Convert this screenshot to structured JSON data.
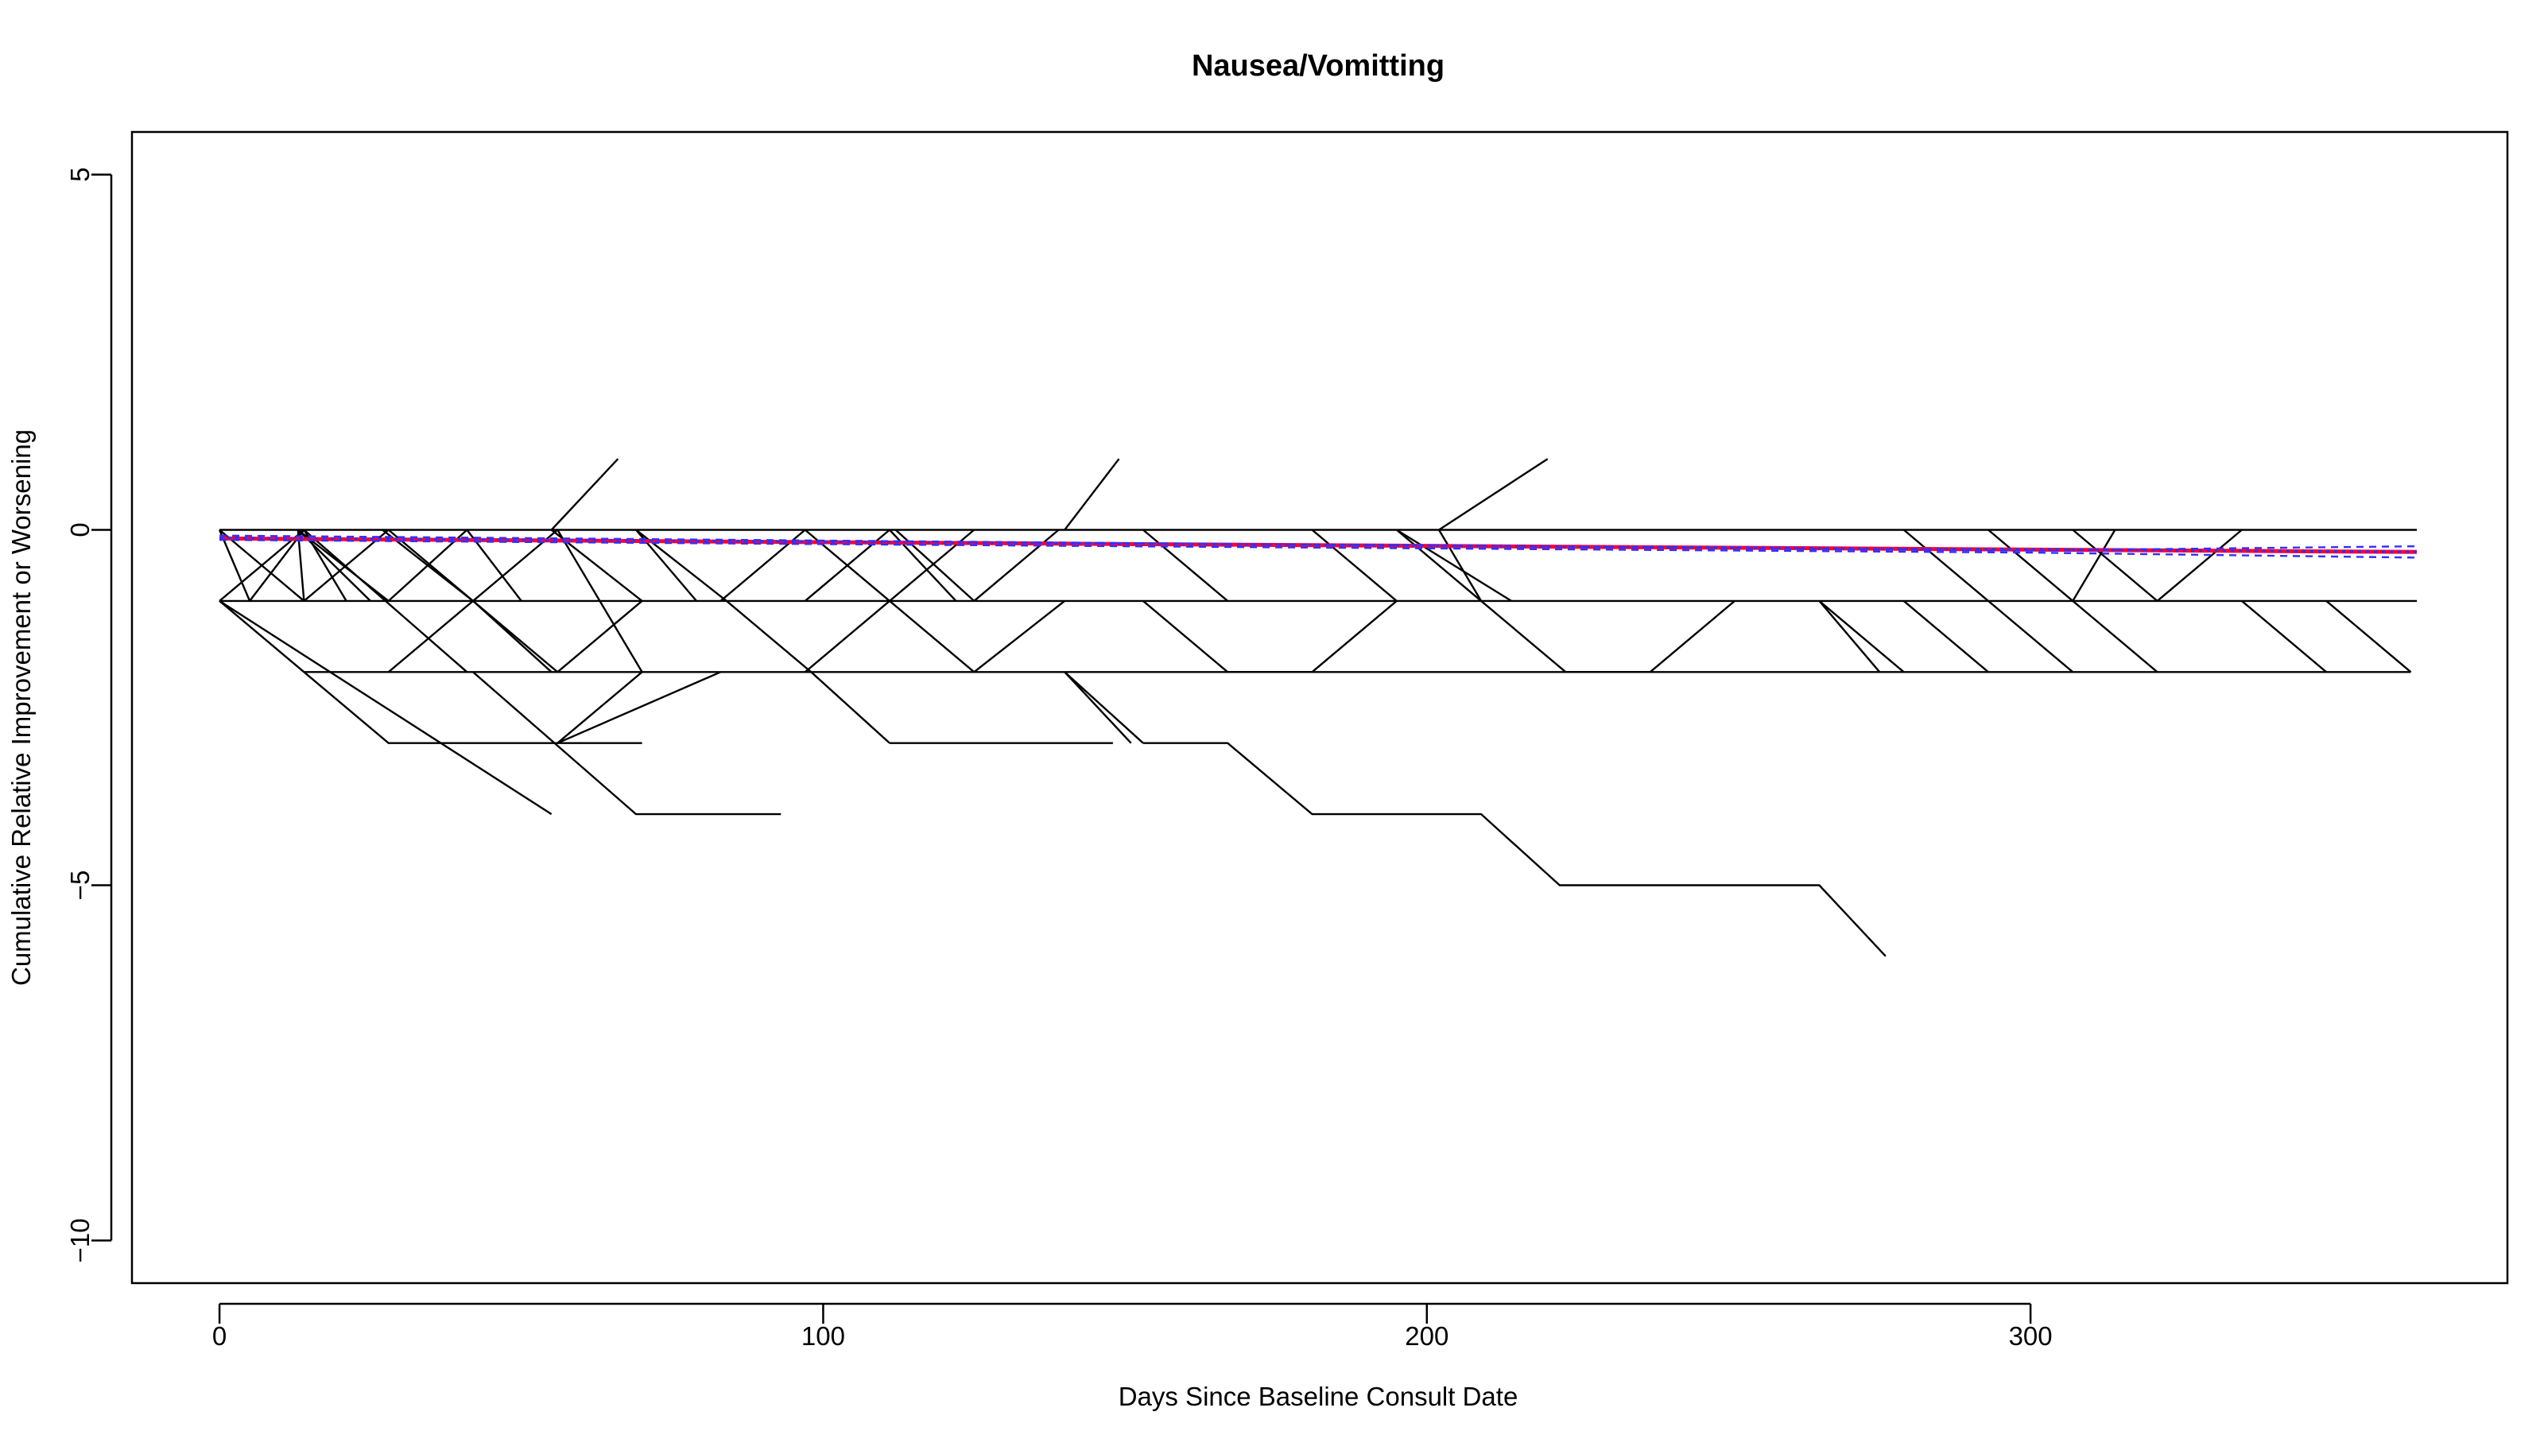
{
  "chart_data": {
    "type": "line",
    "title": "Nausea/Vomitting",
    "xlabel": "Days Since Baseline Consult Date",
    "ylabel": "Cumulative Relative Improvement or Worsening",
    "xlim": [
      -14.5,
      379
    ],
    "ylim": [
      -10.6,
      5.6
    ],
    "x_ticks": [
      0,
      100,
      200,
      300
    ],
    "y_ticks": [
      5,
      0,
      -5,
      -10
    ],
    "x_tick_labels": [
      "0",
      "100",
      "200",
      "300"
    ],
    "y_tick_labels": [
      "5",
      "0",
      "−5",
      "−10"
    ],
    "grid": false,
    "legend": "none",
    "colors": {
      "trajectories": "#000000",
      "mean_line": "#ff0033",
      "trend_line": "#3030ff",
      "confidence_band": "#3030ff"
    },
    "series_trajectories": [
      {
        "x": [
          0,
          364
        ],
        "y": [
          0,
          0
        ]
      },
      {
        "x": [
          0,
          364
        ],
        "y": [
          -1,
          -1
        ]
      },
      {
        "x": [
          14,
          363
        ],
        "y": [
          -2,
          -2
        ]
      },
      {
        "x": [
          0,
          14,
          28,
          70
        ],
        "y": [
          -1,
          -2,
          -3,
          -3
        ]
      },
      {
        "x": [
          0,
          55
        ],
        "y": [
          -1,
          -4
        ]
      },
      {
        "x": [
          42,
          69,
          93
        ],
        "y": [
          -2,
          -4,
          -4
        ]
      },
      {
        "x": [
          0,
          5,
          14
        ],
        "y": [
          0,
          -1,
          0
        ]
      },
      {
        "x": [
          0,
          14
        ],
        "y": [
          0,
          -1
        ]
      },
      {
        "x": [
          0,
          14
        ],
        "y": [
          -1,
          0
        ]
      },
      {
        "x": [
          13,
          28
        ],
        "y": [
          0,
          -1
        ]
      },
      {
        "x": [
          13,
          25
        ],
        "y": [
          0,
          -1
        ]
      },
      {
        "x": [
          13,
          14
        ],
        "y": [
          0,
          -1
        ]
      },
      {
        "x": [
          14,
          21
        ],
        "y": [
          0,
          -1
        ]
      },
      {
        "x": [
          14,
          28
        ],
        "y": [
          -1,
          0
        ]
      },
      {
        "x": [
          14,
          41
        ],
        "y": [
          0,
          -2
        ]
      },
      {
        "x": [
          27,
          42,
          55
        ],
        "y": [
          0,
          -1,
          -2
        ]
      },
      {
        "x": [
          28,
          41
        ],
        "y": [
          -1,
          0
        ]
      },
      {
        "x": [
          28,
          42,
          56,
          70
        ],
        "y": [
          0,
          -1,
          0,
          -2
        ]
      },
      {
        "x": [
          28,
          42
        ],
        "y": [
          -2,
          -1
        ]
      },
      {
        "x": [
          41,
          50
        ],
        "y": [
          0,
          -1
        ]
      },
      {
        "x": [
          55,
          66
        ],
        "y": [
          0,
          1
        ]
      },
      {
        "x": [
          42,
          56,
          70
        ],
        "y": [
          -1,
          -2,
          -1
        ]
      },
      {
        "x": [
          56,
          70
        ],
        "y": [
          -3,
          -2
        ]
      },
      {
        "x": [
          55,
          70
        ],
        "y": [
          0,
          -1
        ]
      },
      {
        "x": [
          69,
          84
        ],
        "y": [
          0,
          -1
        ]
      },
      {
        "x": [
          69,
          79
        ],
        "y": [
          0,
          -1
        ]
      },
      {
        "x": [
          83,
          97
        ],
        "y": [
          -1,
          0
        ]
      },
      {
        "x": [
          84,
          98,
          111
        ],
        "y": [
          -1,
          -2,
          -3
        ]
      },
      {
        "x": [
          56,
          83
        ],
        "y": [
          -3,
          -2
        ]
      },
      {
        "x": [
          97,
          111,
          125,
          140
        ],
        "y": [
          0,
          -1,
          -2,
          -1
        ]
      },
      {
        "x": [
          97,
          111
        ],
        "y": [
          -1,
          0
        ]
      },
      {
        "x": [
          111,
          125
        ],
        "y": [
          -1,
          0
        ]
      },
      {
        "x": [
          111,
          122
        ],
        "y": [
          0,
          -1
        ]
      },
      {
        "x": [
          112,
          125
        ],
        "y": [
          0,
          -1
        ]
      },
      {
        "x": [
          125,
          139
        ],
        "y": [
          -1,
          0
        ]
      },
      {
        "x": [
          97,
          111
        ],
        "y": [
          -2,
          -1
        ]
      },
      {
        "x": [
          111,
          148
        ],
        "y": [
          -3,
          -3
        ]
      },
      {
        "x": [
          140,
          149
        ],
        "y": [
          0,
          1
        ]
      },
      {
        "x": [
          140,
          153
        ],
        "y": [
          -2,
          -3
        ]
      },
      {
        "x": [
          140,
          151
        ],
        "y": [
          -2,
          -3
        ]
      },
      {
        "x": [
          153,
          167,
          181,
          209,
          222,
          265,
          276
        ],
        "y": [
          -3,
          -3,
          -4,
          -4,
          -5,
          -5,
          -6
        ]
      },
      {
        "x": [
          153,
          167
        ],
        "y": [
          0,
          -1
        ]
      },
      {
        "x": [
          153,
          167,
          167,
          167
        ],
        "y": [
          -1,
          -2,
          -2,
          -2
        ]
      },
      {
        "x": [
          167,
          181,
          195
        ],
        "y": [
          -2,
          -2,
          -1
        ]
      },
      {
        "x": [
          181,
          195
        ],
        "y": [
          0,
          -1
        ]
      },
      {
        "x": [
          195,
          209
        ],
        "y": [
          0,
          -1
        ]
      },
      {
        "x": [
          195,
          214
        ],
        "y": [
          0,
          -1
        ]
      },
      {
        "x": [
          202,
          220
        ],
        "y": [
          0,
          1
        ]
      },
      {
        "x": [
          202,
          209
        ],
        "y": [
          0,
          -1
        ]
      },
      {
        "x": [
          209,
          223,
          237,
          251
        ],
        "y": [
          -1,
          -2,
          -2,
          -1
        ]
      },
      {
        "x": [
          265,
          279
        ],
        "y": [
          -1,
          -2
        ]
      },
      {
        "x": [
          265,
          275
        ],
        "y": [
          -1,
          -2
        ]
      },
      {
        "x": [
          279,
          293
        ],
        "y": [
          -1,
          -2
        ]
      },
      {
        "x": [
          279,
          293,
          307
        ],
        "y": [
          0,
          -1,
          -2
        ]
      },
      {
        "x": [
          293,
          307,
          321
        ],
        "y": [
          0,
          -1,
          -2
        ]
      },
      {
        "x": [
          307,
          321,
          335
        ],
        "y": [
          0,
          -1,
          0
        ]
      },
      {
        "x": [
          307,
          314
        ],
        "y": [
          -1,
          0
        ]
      },
      {
        "x": [
          335,
          349
        ],
        "y": [
          -1,
          -2
        ]
      },
      {
        "x": [
          349,
          363
        ],
        "y": [
          -1,
          -2
        ]
      }
    ],
    "series_mean": {
      "x": [
        0,
        364
      ],
      "y": [
        -0.12,
        -0.31
      ]
    },
    "series_trend": {
      "x": [
        0,
        364
      ],
      "y": [
        -0.11,
        -0.31
      ]
    },
    "series_upper_ci": {
      "x": [
        0,
        300,
        364
      ],
      "y": [
        -0.08,
        -0.29,
        -0.23
      ]
    },
    "series_lower_ci": {
      "x": [
        0,
        300,
        364
      ],
      "y": [
        -0.14,
        -0.32,
        -0.39
      ]
    }
  }
}
